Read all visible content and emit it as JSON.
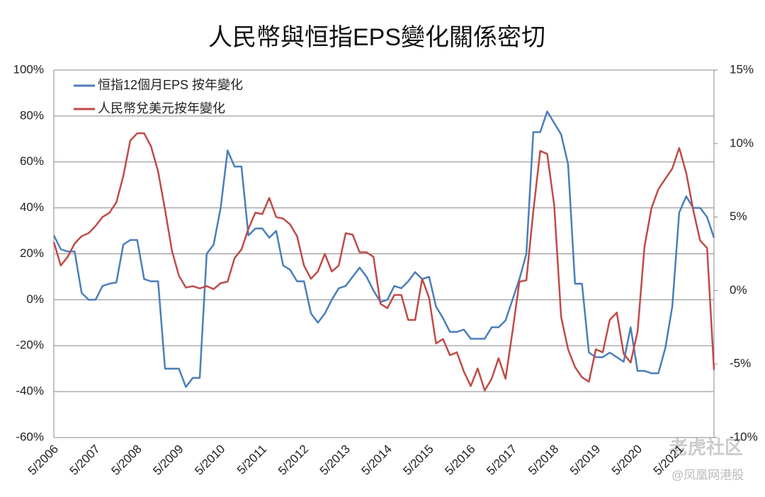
{
  "chart_data": {
    "type": "line",
    "title": "人民幣與恒指EPS變化關係密切",
    "watermark": "老虎社区",
    "source_mark": "@凤凰网港股",
    "legend": "upper left",
    "grid": true,
    "categories": [
      "5/2006",
      null,
      null,
      null,
      null,
      null,
      "5/2007",
      null,
      null,
      null,
      null,
      null,
      "5/2008",
      null,
      null,
      null,
      null,
      null,
      "5/2009",
      null,
      null,
      null,
      null,
      null,
      "5/2010",
      null,
      null,
      null,
      null,
      null,
      "5/2011",
      null,
      null,
      null,
      null,
      null,
      "5/2012",
      null,
      null,
      null,
      null,
      null,
      "5/2013",
      null,
      null,
      null,
      null,
      null,
      "5/2014",
      null,
      null,
      null,
      null,
      null,
      "5/2015",
      null,
      null,
      null,
      null,
      null,
      "5/2016",
      null,
      null,
      null,
      null,
      null,
      "5/2017",
      null,
      null,
      null,
      null,
      null,
      "5/2018",
      null,
      null,
      null,
      null,
      null,
      "5/2019",
      null,
      null,
      null,
      null,
      null,
      "5/2020",
      null,
      null,
      null,
      null,
      null,
      "5/2021",
      null,
      null,
      null,
      null,
      null
    ],
    "ylim": [
      -60,
      100
    ],
    "yticks": [
      {
        "value": -60,
        "label": "-60%"
      },
      {
        "value": -40,
        "label": "-40%"
      },
      {
        "value": -20,
        "label": "-20%"
      },
      {
        "value": 0,
        "label": "0%"
      },
      {
        "value": 20,
        "label": "20%"
      },
      {
        "value": 40,
        "label": "40%"
      },
      {
        "value": 60,
        "label": "60%"
      },
      {
        "value": 80,
        "label": "80%"
      },
      {
        "value": 100,
        "label": "100%"
      }
    ],
    "y2lim": [
      -10,
      15
    ],
    "y2ticks": [
      {
        "value": -10,
        "label": "-10%"
      },
      {
        "value": -5,
        "label": "-5%"
      },
      {
        "value": 0,
        "label": "0%"
      },
      {
        "value": 5,
        "label": "5%"
      },
      {
        "value": 10,
        "label": "10%"
      },
      {
        "value": 15,
        "label": "15%"
      }
    ],
    "series": [
      {
        "name": "恒指12個月EPS 按年變化",
        "color": "#4a7ebb",
        "axis": "y",
        "values": [
          28,
          22,
          21,
          21,
          3,
          0,
          0,
          6,
          7,
          7.5,
          24,
          26,
          26,
          9,
          8,
          8,
          -30,
          -30,
          -30,
          -38,
          -34,
          -34,
          20,
          24,
          40,
          65,
          58,
          58,
          28,
          31,
          31,
          27,
          30,
          15,
          13,
          8,
          8,
          -6,
          -10,
          -6,
          0,
          5,
          6,
          10,
          14,
          10,
          4,
          -1,
          0,
          6,
          5,
          8,
          12,
          9,
          10,
          -3,
          -8,
          -14,
          -14,
          -13,
          -17,
          -17,
          -17,
          -12,
          -12,
          -9,
          0,
          9,
          20,
          73,
          73,
          82,
          77,
          72,
          59,
          7,
          7,
          -23,
          -25,
          -25,
          -23,
          -25,
          -27,
          -12,
          -31,
          -31,
          -32,
          -32,
          -21,
          -3,
          38,
          45,
          40,
          40,
          36,
          27
        ]
      },
      {
        "name": "人民幣兌美元按年變化",
        "color": "#be4b48",
        "axis": "y2",
        "values": [
          3.3,
          1.7,
          2.3,
          3.2,
          3.7,
          3.9,
          4.4,
          5.0,
          5.3,
          6.0,
          7.8,
          10.2,
          10.7,
          10.7,
          9.8,
          8.1,
          5.5,
          2.7,
          1.0,
          0.2,
          0.3,
          0.15,
          0.3,
          0.1,
          0.5,
          0.6,
          2.2,
          2.8,
          4.2,
          5.3,
          5.2,
          6.3,
          5.0,
          4.9,
          4.5,
          3.7,
          1.7,
          0.8,
          1.3,
          2.5,
          1.3,
          1.7,
          3.9,
          3.8,
          2.6,
          2.6,
          2.3,
          -0.9,
          -1.2,
          -0.3,
          -0.3,
          -2.0,
          -2.0,
          0.8,
          -0.5,
          -3.6,
          -3.3,
          -4.4,
          -4.2,
          -5.5,
          -6.5,
          -5.3,
          -6.8,
          -6.0,
          -4.6,
          -6.0,
          -2.8,
          0.6,
          0.7,
          5.4,
          9.5,
          9.3,
          5.8,
          -1.8,
          -4.0,
          -5.2,
          -5.9,
          -6.2,
          -4.0,
          -4.2,
          -2.0,
          -1.5,
          -4.3,
          -4.9,
          -2.8,
          3.0,
          5.6,
          6.9,
          7.6,
          8.3,
          9.7,
          8.0,
          5.5,
          3.4,
          2.9,
          -5.4
        ]
      }
    ]
  }
}
